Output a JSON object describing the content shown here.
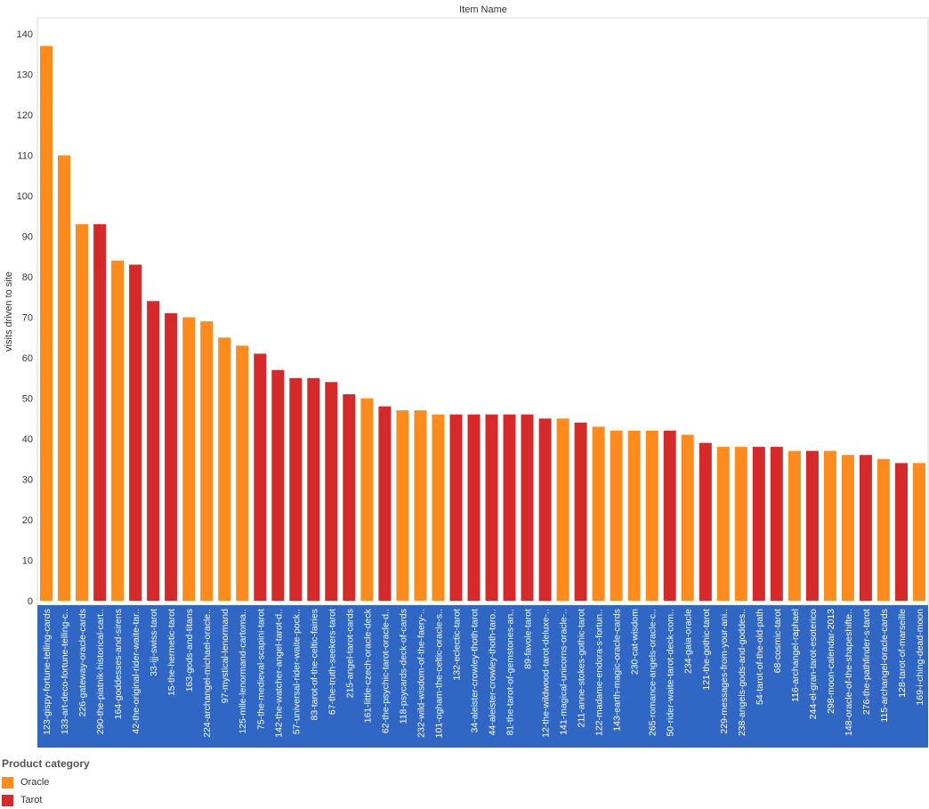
{
  "chart_data": {
    "type": "bar",
    "title": "Item Name",
    "ylabel": "visits driven to site",
    "ylim": [
      0,
      145
    ],
    "yticks": [
      0,
      10,
      20,
      30,
      40,
      50,
      60,
      70,
      80,
      90,
      100,
      110,
      120,
      130,
      140
    ],
    "grid": false,
    "legend_placement": "bottom-left",
    "categories": [
      "123-gispy-fortune-telling-cards",
      "133-art-deco-fortune-telling-c..",
      "226-gateway-oracle-cards",
      "290-the-piatnik-historical-cart..",
      "164-goddesses-and-sirens",
      "42-the-original-rider-waite-tar..",
      "33-ijj-swiss-tarot",
      "15-the-hermetic-tarot",
      "163-gods-and-titans",
      "224-archangel-michael-oracle..",
      "97-mystical-lenormand",
      "125-mlle-lenormand-cartoma..",
      "75-the-medieval-scapini-tarot",
      "142-the-watcher-angel-tarot-d..",
      "57-universal-rider-waite-pock..",
      "83-tarot-of-the-celtic-fairies",
      "67-the-truth-seekers-tarot",
      "215-angel-tarot-cards",
      "161-little-czech-oracle-deck",
      "62-the-psychic-tarot-oracle-d..",
      "118-psycards-deck-of-cards",
      "232-wild-wisdom-of-the-faery-..",
      "101-ogham-the-celtic-oracle-s..",
      "132-eclectic-tarot",
      "34-aleister-crowley-thoth-tarot",
      "44-aleister-crowley-thoth-taro..",
      "81-the-tarot-of-gemstones-an..",
      "89-favole-tarot",
      "12-the-wildwood-tarot-deluxe-..",
      "141-magical-unicorns-oracle-..",
      "211-anne-stokes-gothic-tarot",
      "122-madame-endora-s-fortun..",
      "143-earth-magic-oracle-cards",
      "230-cat-wisdom",
      "265-romance-angels-oracle-c..",
      "50-rider-waite-tarot-deck-com..",
      "234-gaia-oracle",
      "121-the-gothic-tarot",
      "229-messages-from-your-ani..",
      "238-angels-gods-and-goddes..",
      "54-tarot-of-the-old-path",
      "68-cosmic-tarot",
      "116-archangel-raphael",
      "244-el-gran-tarot-esoterico",
      "298-moon-calendar-2013",
      "148-oracle-of-the-shapeshifte..",
      "276-the-pathfinder-s-tarot",
      "115-archangel-oracle-cards",
      "128-tarot-of-marseille",
      "169-i-ching-dead-moon"
    ],
    "values": [
      137,
      110,
      93,
      93,
      84,
      83,
      74,
      71,
      70,
      69,
      65,
      63,
      61,
      57,
      55,
      55,
      54,
      51,
      50,
      48,
      47,
      47,
      46,
      46,
      46,
      46,
      46,
      46,
      45,
      45,
      44,
      43,
      42,
      42,
      42,
      42,
      41,
      39,
      38,
      38,
      38,
      38,
      37,
      37,
      37,
      36,
      36,
      35,
      34,
      34
    ],
    "category_of_item": [
      "Oracle",
      "Oracle",
      "Oracle",
      "Tarot",
      "Oracle",
      "Tarot",
      "Tarot",
      "Tarot",
      "Oracle",
      "Oracle",
      "Oracle",
      "Oracle",
      "Tarot",
      "Tarot",
      "Tarot",
      "Tarot",
      "Tarot",
      "Tarot",
      "Oracle",
      "Tarot",
      "Oracle",
      "Oracle",
      "Oracle",
      "Tarot",
      "Tarot",
      "Tarot",
      "Tarot",
      "Tarot",
      "Tarot",
      "Oracle",
      "Tarot",
      "Oracle",
      "Oracle",
      "Oracle",
      "Oracle",
      "Tarot",
      "Oracle",
      "Tarot",
      "Oracle",
      "Oracle",
      "Tarot",
      "Tarot",
      "Oracle",
      "Tarot",
      "Oracle",
      "Oracle",
      "Tarot",
      "Oracle",
      "Tarot",
      "Oracle"
    ],
    "legend": {
      "title": "Product category",
      "entries": [
        {
          "name": "Oracle",
          "color": "#ff8b1c"
        },
        {
          "name": "Tarot",
          "color": "#d62a2a"
        }
      ]
    },
    "label_band_color": "#3067c4"
  }
}
